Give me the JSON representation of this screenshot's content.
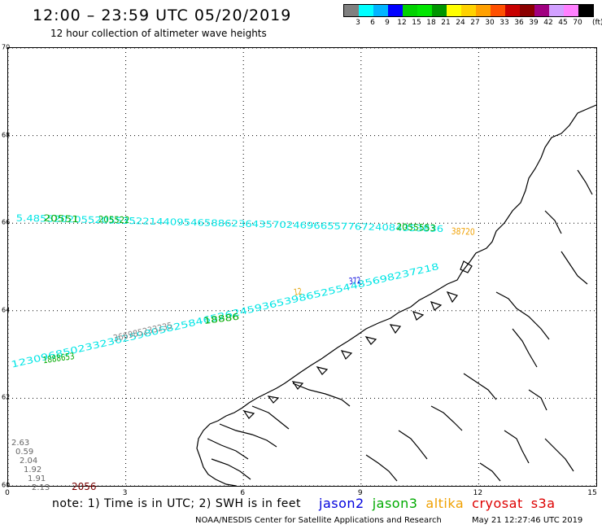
{
  "header": {
    "title": "12:00 – 23:59 UTC 05/20/2019",
    "subtitle": "12 hour collection of altimeter wave heights"
  },
  "legend": {
    "unit": "(ft)",
    "colors": [
      "#808080",
      "#00ffff",
      "#00b4ff",
      "#0000ff",
      "#00d200",
      "#00e600",
      "#009600",
      "#ffff00",
      "#ffd200",
      "#ffa000",
      "#ff5000",
      "#c80000",
      "#8b0000",
      "#a00080",
      "#d2a0ff",
      "#ff80ff",
      "#000000"
    ],
    "labels": [
      "3",
      "6",
      "9",
      "12",
      "15",
      "18",
      "21",
      "24",
      "27",
      "30",
      "33",
      "36",
      "39",
      "42",
      "45",
      "70"
    ]
  },
  "axes": {
    "y_labels": [
      {
        "lat": 60,
        "label": "60"
      },
      {
        "lat": 62,
        "label": "62"
      },
      {
        "lat": 64,
        "label": "64"
      },
      {
        "lat": 66,
        "label": "66"
      },
      {
        "lat": 68,
        "label": "68"
      },
      {
        "lat": 70,
        "label": "70"
      }
    ],
    "x_labels": [
      {
        "lon": 0,
        "label": "0"
      },
      {
        "lon": 3,
        "label": "3"
      },
      {
        "lon": 6,
        "label": "6"
      },
      {
        "lon": 9,
        "label": "9"
      },
      {
        "lon": 12,
        "label": "12"
      },
      {
        "lon": 15,
        "label": "15"
      }
    ],
    "lat_range": [
      60,
      70
    ],
    "lon_range": [
      0,
      15
    ]
  },
  "tracks": [
    {
      "color": "#00e5e5",
      "text": "5.4855202055205535221440954658862364357024696655776724084353836",
      "lon0": 0.2,
      "lat0": 66.05,
      "lon1": 11.1,
      "lat1": 65.8
    },
    {
      "color": "#00aa00",
      "text": "20551",
      "lon0": 0.9,
      "lat0": 66.05,
      "lon1": 1.8,
      "lat1": 66.02
    },
    {
      "color": "#00aa00",
      "text": "205522",
      "lon0": 2.3,
      "lat0": 66.02,
      "lon1": 3.1,
      "lat1": 66.0
    },
    {
      "color": "#00aa00",
      "text": "2055553",
      "lon0": 9.9,
      "lat0": 65.85,
      "lon1": 10.9,
      "lat1": 65.82
    },
    {
      "color": "#f0a000",
      "text": "38720",
      "lon0": 11.3,
      "lat0": 65.75,
      "lon1": 11.9,
      "lat1": 65.73
    },
    {
      "color": "#00e5e5",
      "text": "1230968502332362598058258465262459365398652554485698237218",
      "lon0": 0.1,
      "lat0": 62.7,
      "lon1": 11.0,
      "lat1": 64.95
    },
    {
      "color": "#00aa00",
      "text": "1888653",
      "lon0": 0.9,
      "lat0": 62.8,
      "lon1": 1.7,
      "lat1": 62.9
    },
    {
      "color": "#00aa00",
      "text": "18886",
      "lon0": 5.0,
      "lat0": 63.7,
      "lon1": 5.9,
      "lat1": 63.8
    },
    {
      "color": "#888888",
      "text": "366985233235",
      "lon0": 2.7,
      "lat0": 63.3,
      "lon1": 4.2,
      "lat1": 63.6
    },
    {
      "color": "#e0a000",
      "text": "12",
      "lon0": 7.3,
      "lat0": 64.35,
      "lon1": 7.5,
      "lat1": 64.38
    },
    {
      "color": "#0000dd",
      "text": "372",
      "lon0": 8.7,
      "lat0": 64.6,
      "lon1": 9.0,
      "lat1": 64.63
    }
  ],
  "low_values": [
    "2.63",
    "0.59",
    "2.04",
    "1.92",
    "1.91",
    "2.13"
  ],
  "tag": "2056",
  "footer": {
    "note": "note:  1)  Time is in UTC;  2)  SWH is in feet",
    "satellites": [
      {
        "name": "jason2",
        "color": "#0000dd"
      },
      {
        "name": "jason3",
        "color": "#00aa00"
      },
      {
        "name": "altika",
        "color": "#f0a000"
      },
      {
        "name": "cryosat",
        "color": "#dd0000"
      },
      {
        "name": "s3a",
        "color": "#dd0000"
      }
    ],
    "credit": "NOAA/NESDIS Center for Satellite Applications and Research",
    "timestamp": "May 21 12:27:46 UTC 2019"
  }
}
